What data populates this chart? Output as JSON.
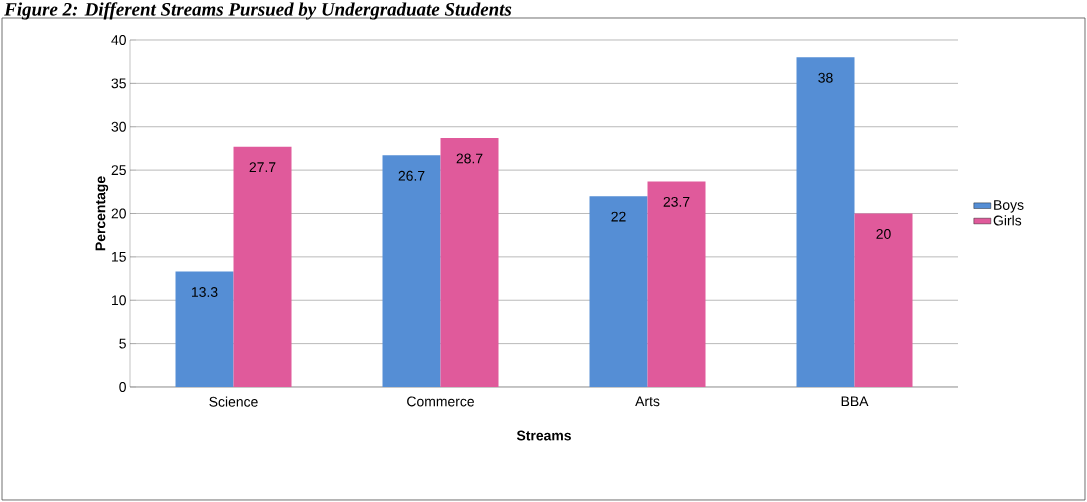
{
  "chart_data": {
    "type": "bar",
    "title": "Figure 2: Different Streams Pursued by Undergraduate Students",
    "xlabel": "Streams",
    "ylabel": "Percentage",
    "categories": [
      "Science",
      "Commerce",
      "Arts",
      "BBA"
    ],
    "series": [
      {
        "name": "Boys",
        "color": "#558ed5",
        "values": [
          13.3,
          26.7,
          22,
          38
        ]
      },
      {
        "name": "Girls",
        "color": "#e05a9b",
        "values": [
          27.7,
          28.7,
          23.7,
          20
        ]
      }
    ],
    "ylim": [
      0,
      40
    ],
    "yticks": [
      0,
      5,
      10,
      15,
      20,
      25,
      30,
      35,
      40
    ],
    "grid": "y",
    "legend": "right",
    "data_labels": true
  }
}
